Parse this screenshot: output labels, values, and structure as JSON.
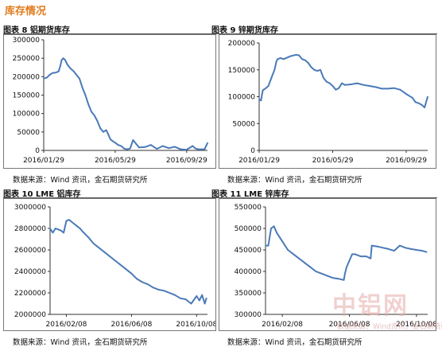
{
  "page": {
    "section_title": "库存情况",
    "watermark": {
      "text": "中铝网",
      "sub": "数据来源：Wind资讯，金石期货研究所"
    }
  },
  "figures": [
    {
      "title": "图表 8 铝期货库存",
      "source": "数据来源：Wind 资讯，金石期货研究所"
    },
    {
      "title": "图表 9 锌期货库存",
      "source": "数据来源：Wind 资讯，金石期货研究所"
    },
    {
      "title": "图表 10 LME 铝库存",
      "source": "数据来源：Wind 资讯，金石期货研究所"
    },
    {
      "title": "图表 11 LME 锌库存",
      "source": "数据来源：Wind 资讯，金石期货研究所"
    }
  ],
  "colors": {
    "line": "#4a7ab8",
    "accent": "#e07a1a"
  },
  "chart_data": [
    {
      "type": "line",
      "title": "图表 8 铝期货库存",
      "ylim": [
        0,
        300000
      ],
      "yticks": [
        0,
        50000,
        100000,
        150000,
        200000,
        250000,
        300000
      ],
      "ytick_labels": [
        "0",
        "50000",
        "100000",
        "150000",
        "200000",
        "250000",
        "300000"
      ],
      "xlim": [
        0,
        275
      ],
      "xticks": [
        0,
        120,
        240
      ],
      "xtick_labels": [
        "2016/01/29",
        "2016/05/29",
        "2016/09/29"
      ],
      "x": [
        0,
        5,
        10,
        15,
        20,
        25,
        28,
        30,
        33,
        36,
        40,
        45,
        50,
        55,
        60,
        65,
        70,
        75,
        80,
        85,
        90,
        95,
        100,
        105,
        108,
        112,
        116,
        120,
        125,
        130,
        135,
        140,
        145,
        150,
        160,
        170,
        180,
        190,
        200,
        210,
        220,
        230,
        240,
        250,
        255,
        260,
        265,
        270,
        275
      ],
      "values": [
        195000,
        197000,
        205000,
        210000,
        211000,
        214000,
        230000,
        245000,
        250000,
        245000,
        232000,
        222000,
        215000,
        205000,
        195000,
        170000,
        150000,
        125000,
        105000,
        95000,
        80000,
        60000,
        50000,
        55000,
        45000,
        30000,
        25000,
        21000,
        15000,
        12000,
        5000,
        3000,
        5000,
        28000,
        8000,
        9000,
        15000,
        4000,
        12000,
        6000,
        10000,
        3000,
        2000,
        12000,
        5000,
        3000,
        3000,
        3000,
        20000
      ]
    },
    {
      "type": "line",
      "title": "图表 9 锌期货库存",
      "ylim": [
        0,
        200000
      ],
      "yticks": [
        0,
        50000,
        100000,
        150000,
        200000
      ],
      "ytick_labels": [
        "0",
        "50000",
        "100000",
        "150000",
        "200000"
      ],
      "xlim": [
        0,
        275
      ],
      "xticks": [
        0,
        120,
        240
      ],
      "xtick_labels": [
        "2016/01/29",
        "2016/05/29",
        "2016/09/29"
      ],
      "x": [
        0,
        3,
        6,
        10,
        15,
        20,
        25,
        28,
        30,
        35,
        40,
        50,
        60,
        65,
        70,
        75,
        80,
        85,
        90,
        95,
        100,
        105,
        110,
        115,
        120,
        125,
        130,
        135,
        140,
        150,
        160,
        170,
        180,
        190,
        200,
        210,
        220,
        230,
        240,
        250,
        255,
        260,
        265,
        270,
        275
      ],
      "values": [
        95000,
        93000,
        112000,
        115000,
        120000,
        135000,
        150000,
        165000,
        170000,
        172000,
        170000,
        175000,
        178000,
        177000,
        170000,
        168000,
        163000,
        155000,
        150000,
        148000,
        150000,
        135000,
        128000,
        125000,
        120000,
        113000,
        116000,
        125000,
        122000,
        123000,
        125000,
        122000,
        120000,
        118000,
        115000,
        115000,
        116000,
        113000,
        105000,
        98000,
        90000,
        88000,
        85000,
        80000,
        100000
      ]
    },
    {
      "type": "line",
      "title": "图表 10 LME 铝库存",
      "ylim": [
        2000000,
        3000000
      ],
      "yticks": [
        2000000,
        2200000,
        2400000,
        2600000,
        2800000,
        3000000
      ],
      "ytick_labels": [
        "2000000",
        "2200000",
        "2400000",
        "2600000",
        "2800000",
        "3000000"
      ],
      "xlim": [
        -30,
        260
      ],
      "xticks": [
        0,
        120,
        240
      ],
      "xtick_labels": [
        "2016/02/08",
        "2016/06/08",
        "2016/10/08"
      ],
      "x": [
        -30,
        -25,
        -20,
        -15,
        -10,
        -5,
        0,
        5,
        10,
        15,
        20,
        25,
        30,
        40,
        50,
        60,
        70,
        80,
        90,
        100,
        110,
        120,
        130,
        140,
        150,
        160,
        170,
        180,
        190,
        200,
        210,
        220,
        230,
        240,
        245,
        250,
        255,
        258
      ],
      "values": [
        2800000,
        2760000,
        2800000,
        2790000,
        2780000,
        2760000,
        2870000,
        2880000,
        2860000,
        2840000,
        2820000,
        2800000,
        2770000,
        2720000,
        2660000,
        2620000,
        2580000,
        2540000,
        2500000,
        2460000,
        2420000,
        2380000,
        2330000,
        2300000,
        2280000,
        2250000,
        2230000,
        2220000,
        2200000,
        2180000,
        2150000,
        2140000,
        2100000,
        2170000,
        2130000,
        2180000,
        2100000,
        2150000
      ]
    },
    {
      "type": "line",
      "title": "图表 11 LME 锌库存",
      "ylim": [
        300000,
        550000
      ],
      "yticks": [
        300000,
        350000,
        400000,
        450000,
        500000,
        550000
      ],
      "ytick_labels": [
        "300000",
        "350000",
        "400000",
        "450000",
        "500000",
        "550000"
      ],
      "xlim": [
        -30,
        260
      ],
      "xticks": [
        0,
        120,
        240
      ],
      "xtick_labels": [
        "2016/02/08",
        "2016/06/08",
        "2016/10/08"
      ],
      "x": [
        -30,
        -25,
        -20,
        -15,
        -10,
        -5,
        0,
        5,
        10,
        20,
        30,
        40,
        50,
        60,
        70,
        80,
        90,
        100,
        110,
        112,
        115,
        120,
        125,
        130,
        140,
        150,
        155,
        158,
        160,
        170,
        180,
        190,
        200,
        210,
        220,
        230,
        240,
        250,
        258
      ],
      "values": [
        460000,
        460000,
        500000,
        505000,
        490000,
        480000,
        470000,
        460000,
        450000,
        440000,
        430000,
        420000,
        410000,
        400000,
        395000,
        390000,
        385000,
        383000,
        380000,
        395000,
        410000,
        425000,
        440000,
        440000,
        435000,
        435000,
        432000,
        430000,
        460000,
        458000,
        455000,
        452000,
        448000,
        460000,
        455000,
        452000,
        450000,
        448000,
        445000
      ]
    }
  ]
}
